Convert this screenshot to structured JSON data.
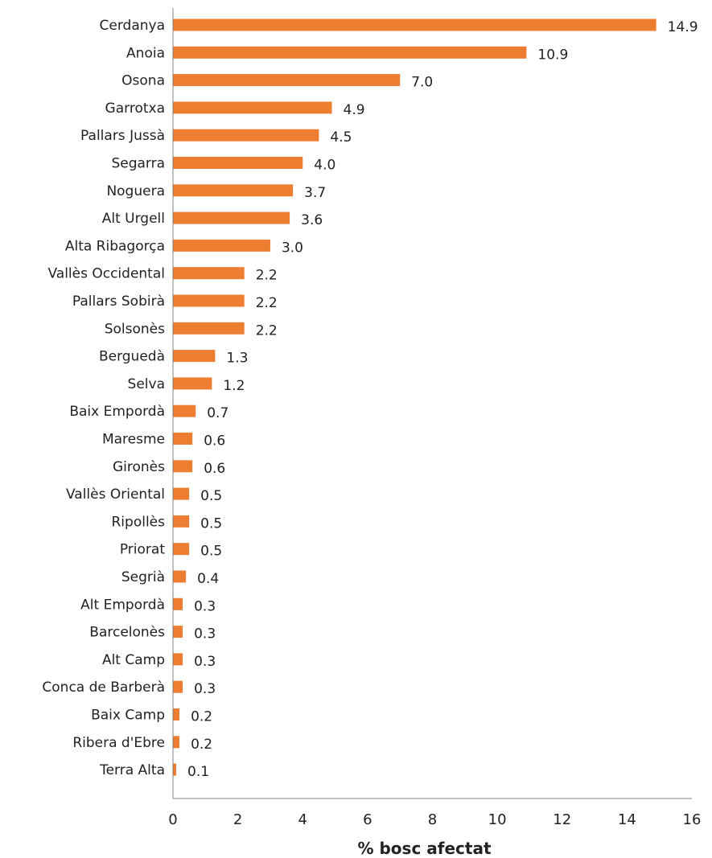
{
  "chart_data": {
    "type": "bar",
    "orientation": "horizontal",
    "categories": [
      "Cerdanya",
      "Anoia",
      "Osona",
      "Garrotxa",
      "Pallars Jussà",
      "Segarra",
      "Noguera",
      "Alt Urgell",
      "Alta Ribagorça",
      "Vallès Occidental",
      "Pallars Sobirà",
      "Solsonès",
      "Berguedà",
      "Selva",
      "Baix Empordà",
      "Maresme",
      "Gironès",
      "Vallès Oriental",
      "Ripollès",
      "Priorat",
      "Segrià",
      "Alt Empordà",
      "Barcelonès",
      "Alt Camp",
      "Conca de Barberà",
      "Baix Camp",
      "Ribera d'Ebre",
      "Terra Alta"
    ],
    "values": [
      14.9,
      10.9,
      7.0,
      4.9,
      4.5,
      4.0,
      3.7,
      3.6,
      3.0,
      2.2,
      2.2,
      2.2,
      1.3,
      1.2,
      0.7,
      0.6,
      0.6,
      0.5,
      0.5,
      0.5,
      0.4,
      0.3,
      0.3,
      0.3,
      0.3,
      0.2,
      0.2,
      0.1
    ],
    "value_labels": [
      "14.9",
      "10.9",
      "7.0",
      "4.9",
      "4.5",
      "4.0",
      "3.7",
      "3.6",
      "3.0",
      "2.2",
      "2.2",
      "2.2",
      "1.3",
      "1.2",
      "0.7",
      "0.6",
      "0.6",
      "0.5",
      "0.5",
      "0.5",
      "0.4",
      "0.3",
      "0.3",
      "0.3",
      "0.3",
      "0.2",
      "0.2",
      "0.1"
    ],
    "xticks": [
      "0",
      "2",
      "4",
      "6",
      "8",
      "10",
      "12",
      "14",
      "16"
    ],
    "xlim": [
      0,
      16
    ],
    "xlabel": "% bosc afectat",
    "ylabel": "",
    "title": "",
    "grid": false,
    "legend": "none",
    "bar_color": "#ED7D31",
    "text_color": "#222222",
    "axis_color": "#808080"
  }
}
